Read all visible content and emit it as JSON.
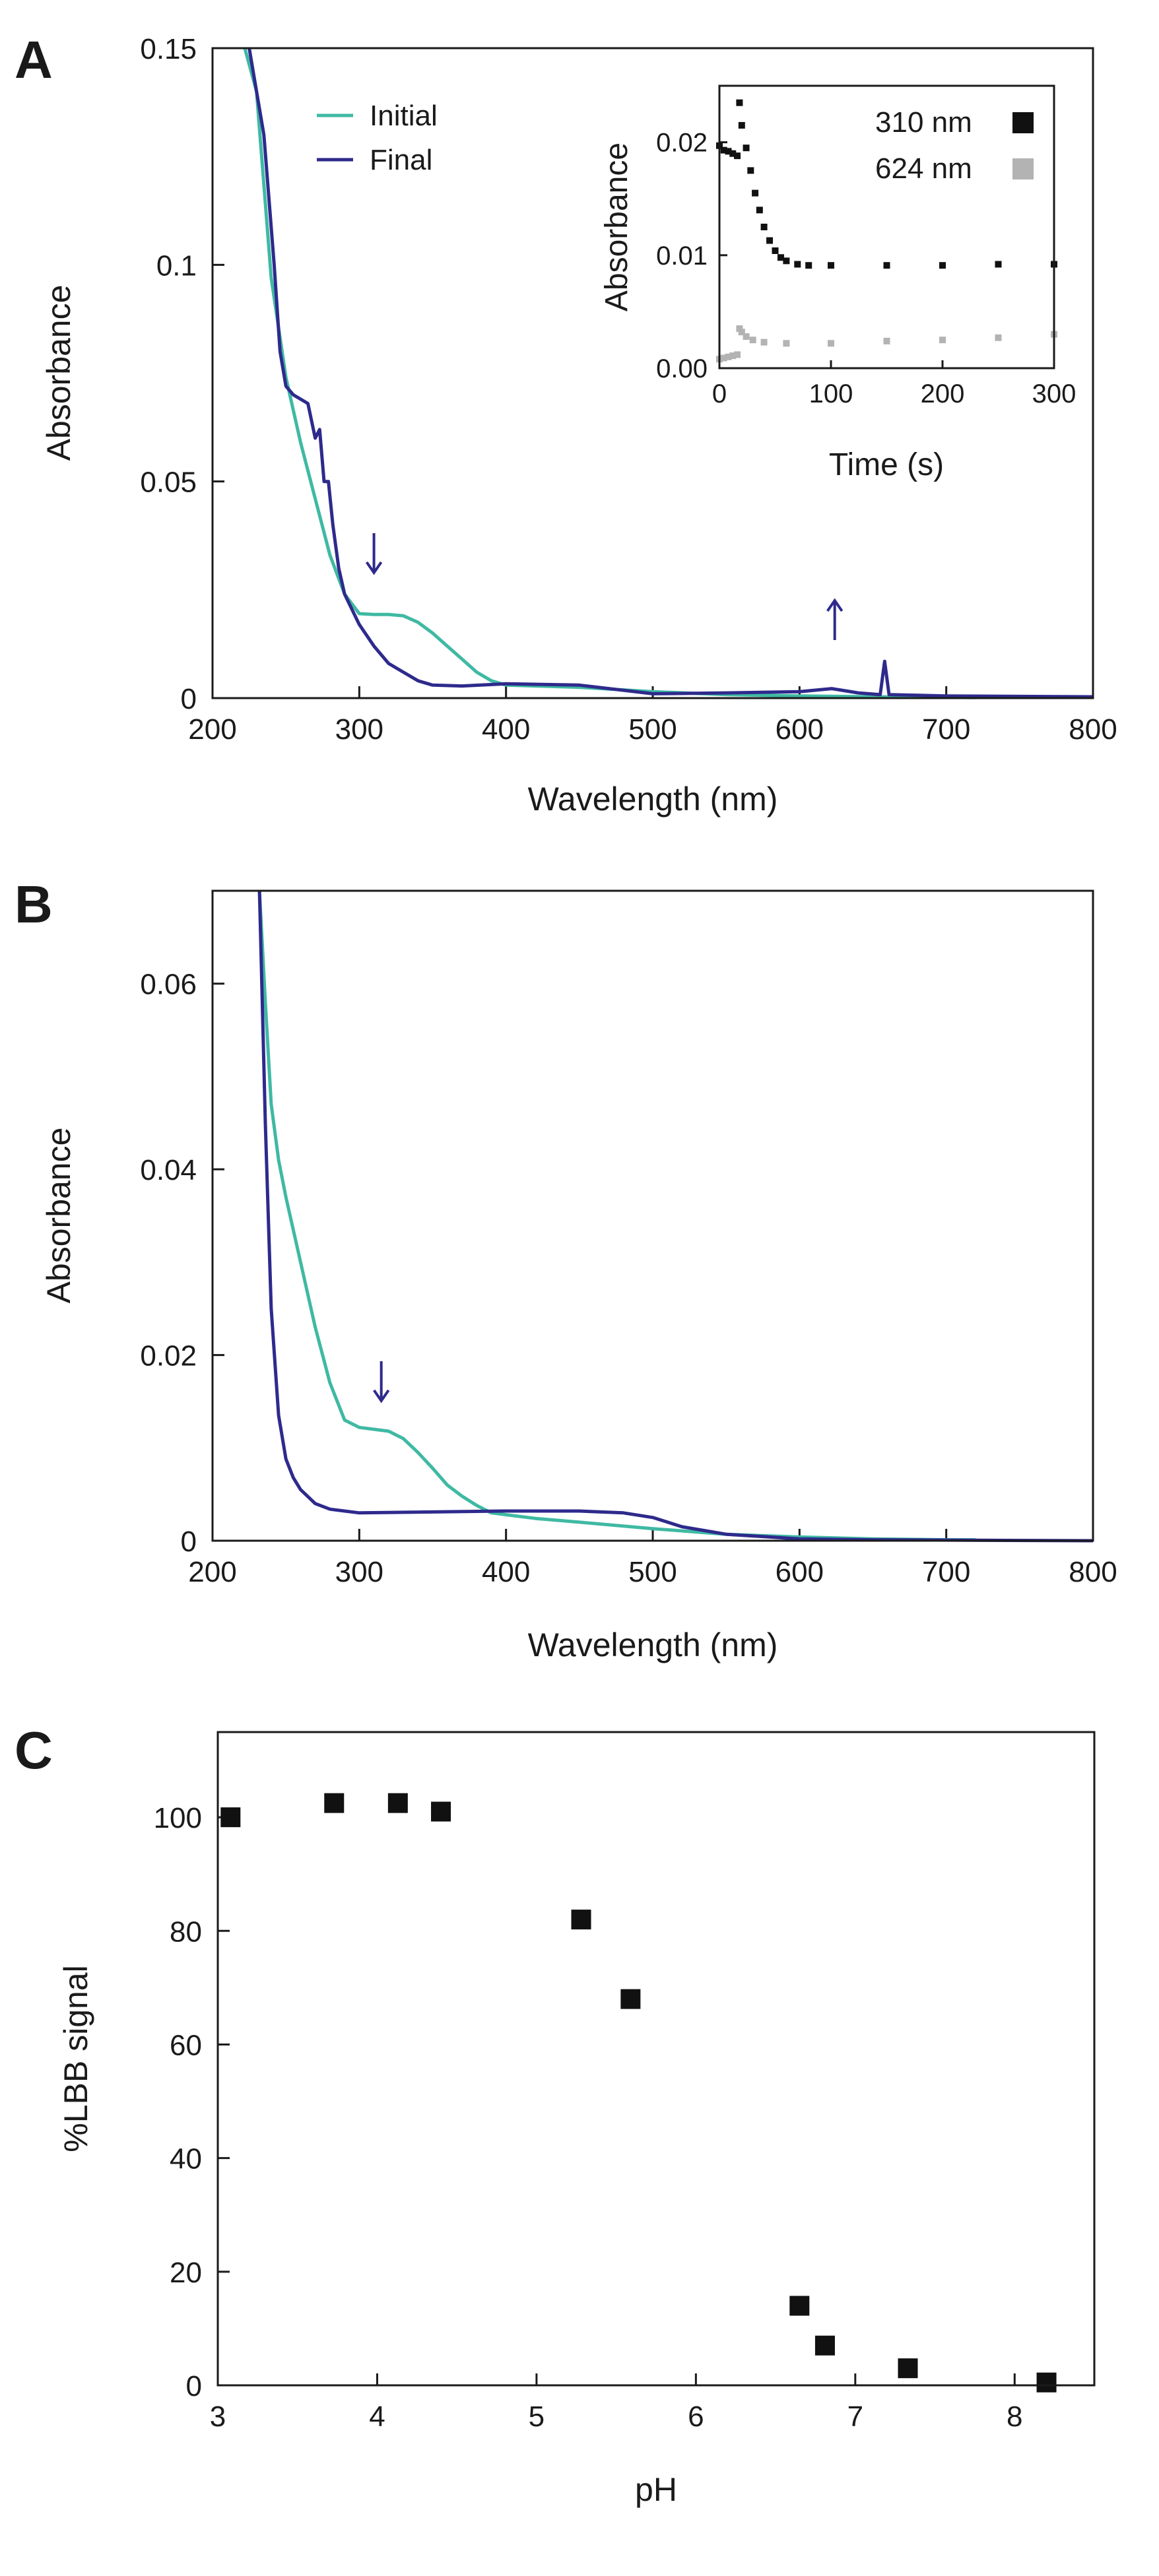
{
  "colors": {
    "initial": "#3fb9a3",
    "final": "#2e2a8c",
    "black_series": "#111111",
    "grey_series": "#b3b3b3",
    "axis": "#1a1a1a"
  },
  "chart_data": [
    {
      "panel": "A",
      "type": "line",
      "xlabel": "Wavelength  (nm)",
      "ylabel": "Absorbance",
      "xlim": [
        200,
        800
      ],
      "ylim": [
        0,
        0.15
      ],
      "xticks": [
        "200",
        "300",
        "400",
        "500",
        "600",
        "700",
        "800"
      ],
      "yticks": [
        "0",
        "0.05",
        "0.1",
        "0.15"
      ],
      "legend": [
        "Initial",
        "Final"
      ],
      "series": [
        {
          "name": "Initial",
          "x": [
            222,
            230,
            240,
            250,
            260,
            270,
            280,
            290,
            300,
            310,
            320,
            330,
            340,
            350,
            360,
            370,
            380,
            390,
            400,
            450,
            500,
            550,
            600,
            650,
            700,
            720
          ],
          "y": [
            0.15,
            0.14,
            0.097,
            0.074,
            0.059,
            0.046,
            0.033,
            0.024,
            0.0195,
            0.0193,
            0.0193,
            0.019,
            0.0175,
            0.015,
            0.012,
            0.009,
            0.006,
            0.004,
            0.003,
            0.0025,
            0.0015,
            0.0008,
            0.0005,
            0.0003,
            0.0002,
            0.0001
          ]
        },
        {
          "name": "Final",
          "x": [
            225,
            235,
            242,
            246,
            250,
            255,
            260,
            265,
            270,
            273,
            276,
            279,
            282,
            286,
            290,
            300,
            310,
            320,
            330,
            340,
            350,
            370,
            400,
            450,
            500,
            550,
            600,
            622,
            640,
            655,
            658,
            661,
            700,
            800
          ],
          "y": [
            0.15,
            0.13,
            0.1,
            0.08,
            0.072,
            0.07,
            0.069,
            0.068,
            0.06,
            0.062,
            0.05,
            0.05,
            0.04,
            0.03,
            0.024,
            0.017,
            0.012,
            0.008,
            0.006,
            0.004,
            0.003,
            0.0028,
            0.0033,
            0.003,
            0.001,
            0.0012,
            0.0015,
            0.0022,
            0.0012,
            0.0008,
            0.0085,
            0.0008,
            0.0005,
            0.0003
          ]
        }
      ],
      "arrows": [
        {
          "x": 310,
          "direction": "down"
        },
        {
          "x": 624,
          "direction": "up"
        }
      ],
      "inset": {
        "type": "scatter",
        "xlabel": "Time  (s)",
        "ylabel": "Absorbance",
        "xlim": [
          0,
          300
        ],
        "ylim": [
          0,
          0.025
        ],
        "xticks": [
          "0",
          "100",
          "200",
          "300"
        ],
        "yticks": [
          "0.00",
          "0.01",
          "0.02"
        ],
        "series": [
          {
            "name": "310 nm",
            "x": [
              0,
              4,
              8,
              12,
              16,
              18,
              20,
              24,
              28,
              32,
              36,
              40,
              45,
              50,
              55,
              60,
              70,
              80,
              100,
              150,
              200,
              250,
              300
            ],
            "y": [
              0.0197,
              0.0193,
              0.0192,
              0.019,
              0.0188,
              0.0235,
              0.0215,
              0.0195,
              0.0175,
              0.0155,
              0.014,
              0.0125,
              0.0113,
              0.0104,
              0.0098,
              0.0095,
              0.0092,
              0.0091,
              0.0091,
              0.0091,
              0.0091,
              0.0092,
              0.0092
            ]
          },
          {
            "name": "624 nm",
            "x": [
              0,
              4,
              8,
              12,
              16,
              18,
              20,
              24,
              30,
              40,
              60,
              100,
              150,
              200,
              250,
              300
            ],
            "y": [
              0.0008,
              0.0009,
              0.001,
              0.0011,
              0.0012,
              0.0035,
              0.0032,
              0.0028,
              0.0025,
              0.0023,
              0.0022,
              0.0022,
              0.0024,
              0.0025,
              0.0027,
              0.003
            ]
          }
        ]
      }
    },
    {
      "panel": "B",
      "type": "line",
      "xlabel": "Wavelength  (nm)",
      "ylabel": "Absorbance",
      "xlim": [
        200,
        800
      ],
      "ylim": [
        0,
        0.07
      ],
      "xticks": [
        "200",
        "300",
        "400",
        "500",
        "600",
        "700",
        "800"
      ],
      "yticks": [
        "0",
        "0.02",
        "0.04",
        "0.06"
      ],
      "series": [
        {
          "name": "Initial",
          "x": [
            232,
            236,
            240,
            245,
            250,
            260,
            270,
            280,
            290,
            300,
            310,
            320,
            330,
            340,
            350,
            360,
            370,
            380,
            390,
            400,
            420,
            450,
            500,
            550,
            600,
            650,
            700,
            720
          ],
          "y": [
            0.07,
            0.058,
            0.047,
            0.041,
            0.037,
            0.03,
            0.023,
            0.017,
            0.013,
            0.0122,
            0.012,
            0.0118,
            0.011,
            0.0095,
            0.0078,
            0.006,
            0.0048,
            0.0038,
            0.003,
            0.0028,
            0.0024,
            0.002,
            0.0013,
            0.0007,
            0.0004,
            0.0002,
            0.0001,
            0.0001
          ]
        },
        {
          "name": "Final",
          "x": [
            232,
            236,
            240,
            245,
            250,
            255,
            260,
            270,
            280,
            300,
            350,
            400,
            450,
            480,
            500,
            520,
            550,
            600,
            650,
            800
          ],
          "y": [
            0.07,
            0.045,
            0.025,
            0.0135,
            0.0088,
            0.0068,
            0.0055,
            0.004,
            0.0034,
            0.003,
            0.0031,
            0.0032,
            0.0032,
            0.003,
            0.0025,
            0.0015,
            0.0007,
            0.0002,
            0.0001,
            0.0
          ]
        }
      ],
      "arrows": [
        {
          "x": 315,
          "direction": "down"
        }
      ]
    },
    {
      "panel": "C",
      "type": "scatter",
      "xlabel": "pH",
      "ylabel": "%LBB signal",
      "xlim": [
        3,
        8.5
      ],
      "ylim": [
        0,
        115
      ],
      "xticks": [
        "3",
        "4",
        "5",
        "6",
        "7",
        "8"
      ],
      "yticks": [
        "0",
        "20",
        "40",
        "60",
        "80",
        "100"
      ],
      "series": [
        {
          "name": "%LBB signal",
          "x": [
            3.08,
            3.73,
            4.13,
            4.4,
            5.28,
            5.59,
            6.65,
            6.81,
            7.33,
            8.2
          ],
          "y": [
            100,
            102.5,
            102.5,
            101,
            82,
            68,
            14,
            7,
            3,
            0.5
          ]
        }
      ]
    }
  ],
  "panels": {
    "A": {
      "letter": "A",
      "legend": {
        "initial": "Initial",
        "final": "Final"
      },
      "inset_legend": {
        "s310": "310 nm",
        "s624": "624 nm"
      }
    },
    "B": {
      "letter": "B"
    },
    "C": {
      "letter": "C"
    }
  }
}
